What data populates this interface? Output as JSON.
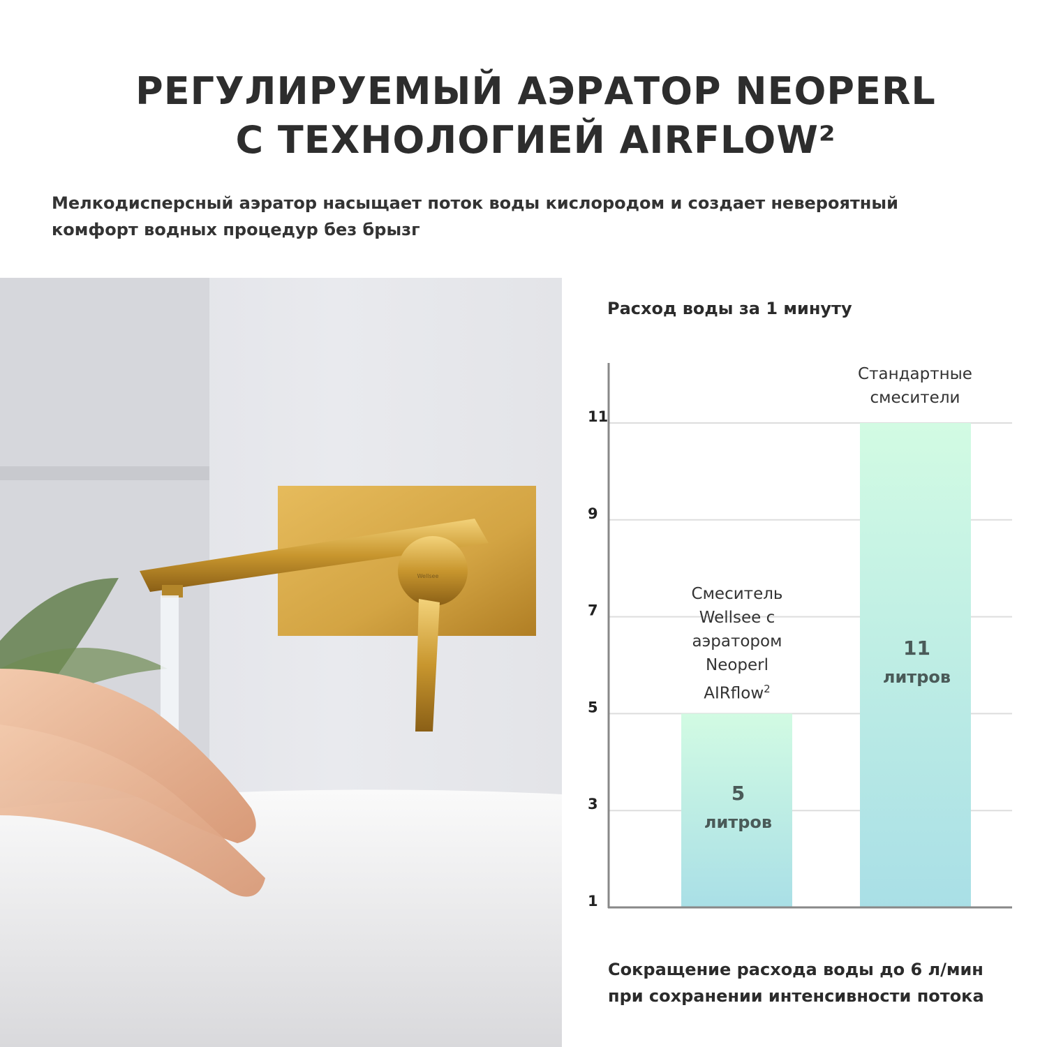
{
  "header": {
    "title_line1": "РЕГУЛИРУЕМЫЙ АЭРАТОР NEOPERL",
    "title_line2": "С ТЕХНОЛОГИЕЙ AIRFLOW²",
    "subtitle": "Мелкодисперсный аэратор насыщает поток воды кислородом и создает невероятный комфорт водных процедур без брызг"
  },
  "photo": {
    "brand_on_handle": "Wellsee",
    "colors": {
      "gold": "#c8962e",
      "wall": "#e6e7eb",
      "sink": "#f4f4f4"
    }
  },
  "chart_data": {
    "type": "bar",
    "title": "Расход воды за 1 минуту",
    "categories": [
      "Смеситель Wellsee с аэратором Neoperl AIRflow²",
      "Стандартные смесители"
    ],
    "category_lines": [
      [
        "Смеситель",
        "Wellsee с",
        "аэратором",
        "Neoperl",
        "AIRflow"
      ],
      [
        "Стандартные",
        "смесители"
      ]
    ],
    "category_superscript": [
      "2",
      ""
    ],
    "values": [
      5,
      11
    ],
    "value_labels": [
      "5",
      "11"
    ],
    "unit_label": "литров",
    "yticks": [
      1,
      3,
      5,
      7,
      9,
      11
    ],
    "ylim": [
      1,
      11
    ],
    "grid": true,
    "colors": {
      "bar_top": "#d2fbe3",
      "bar_bottom": "#a9dfe6",
      "value_text": "#4a5a58",
      "axis": "#888888",
      "grid": "#dddddd"
    }
  },
  "footer": {
    "line1": "Сокращение расхода воды до 6 л/мин",
    "line2": "при сохранении интенсивности потока"
  }
}
